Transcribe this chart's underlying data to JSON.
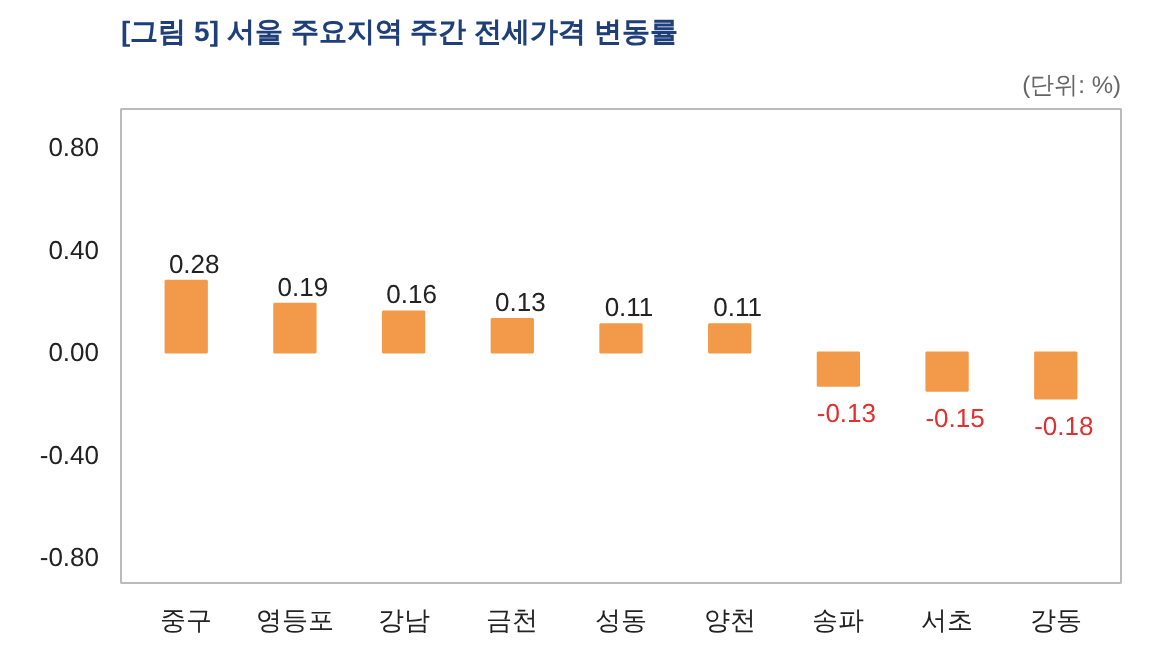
{
  "chart_data": {
    "type": "bar",
    "title": "[그림 5] 서울 주요지역 주간 전세가격 변동률",
    "annotations": [
      "(단위: %)"
    ],
    "categories": [
      "중구",
      "영등포",
      "강남",
      "금천",
      "성동",
      "양천",
      "송파",
      "서초",
      "강동"
    ],
    "values": [
      0.28,
      0.19,
      0.16,
      0.13,
      0.11,
      0.11,
      -0.13,
      -0.15,
      -0.18
    ],
    "color": "#f39a4a",
    "ylim": [
      -0.9,
      0.95
    ],
    "yticks": [
      {
        "value": -0.8,
        "label": "-0.80"
      },
      {
        "value": -0.4,
        "label": "-0.40"
      },
      {
        "value": 0,
        "label": "0.00"
      },
      {
        "value": 0.4,
        "label": "0.40"
      },
      {
        "value": 0.8,
        "label": "0.80"
      }
    ],
    "data_labels": true,
    "grid": false
  }
}
